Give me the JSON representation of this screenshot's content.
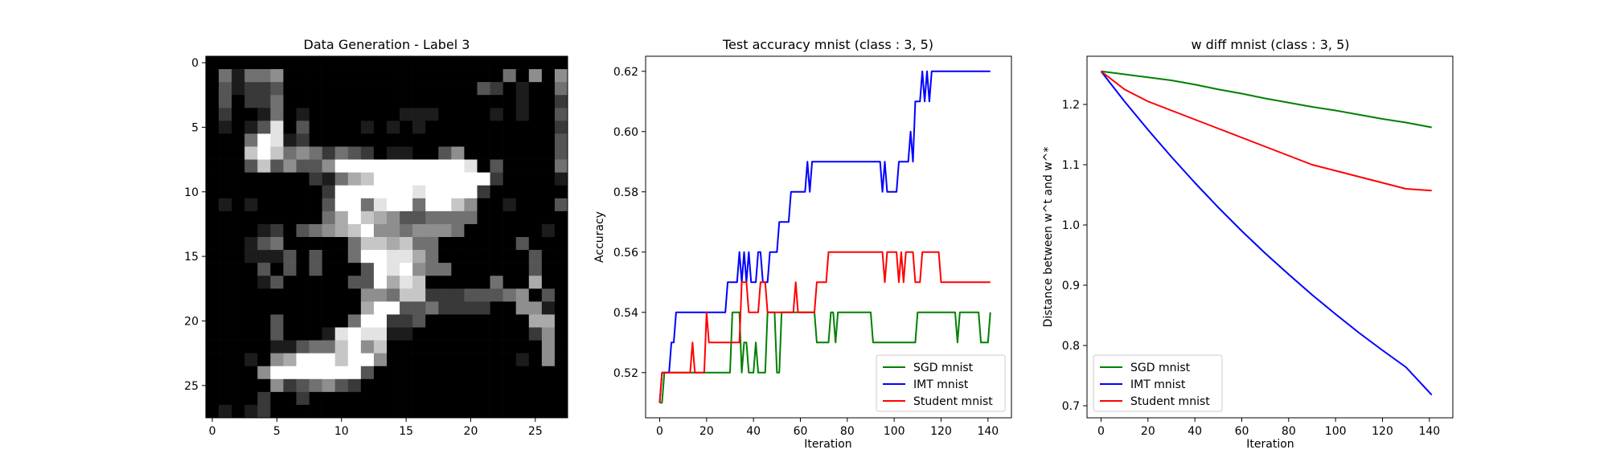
{
  "chart_data": [
    {
      "type": "heatmap",
      "title": "Data Generation - Label 3",
      "xlabel": "",
      "ylabel": "",
      "xticks": [
        0,
        5,
        10,
        15,
        20,
        25
      ],
      "yticks": [
        0,
        5,
        10,
        15,
        20,
        25
      ],
      "colormap": "gray",
      "size": [
        28,
        28
      ],
      "rows": [
        "0000000000000000000000000000",
        "0414450000000000000000040505",
        "0312230000000000000003201004",
        "0302240000000000000000001002",
        "0200140100000001110000101003",
        "0101380300001010100000000002",
        "0004981200000000000000000003",
        "0007974542432011003500000003",
        "0003735335999999999980300004",
        "0000000021467999999999200001",
        "0000000002999999899992000000",
        "0101000003994899499750010003",
        "0000000004697653344440000000",
        "0000120345679554555400000010",
        "0001340000047767440000003000",
        "0001113030049988640000000300",
        "0000303030003989544000000300",
        "0000130000033968700000400600",
        "0000000000005547722233345030",
        "0000000000006993342222005510",
        "0000030000049922300000000660",
        "0000030001898811000000000250",
        "0000011344795700000000000050",
        "0001056999799500000000001050",
        "0000599999993000000000000000",
        "0000052345320000000000000000",
        "0000200200000000000000000000",
        "0101200000000000000000000000"
      ]
    },
    {
      "type": "line",
      "title": "Test accuracy mnist (class : 3, 5)",
      "xlabel": "Iteration",
      "ylabel": "Accuracy",
      "xlim": [
        -6,
        150
      ],
      "ylim": [
        0.505,
        0.625
      ],
      "xticks": [
        0,
        20,
        40,
        60,
        80,
        100,
        120,
        140
      ],
      "yticks": [
        0.52,
        0.54,
        0.56,
        0.58,
        0.6,
        0.62
      ],
      "legend": "lower-right",
      "series": [
        {
          "name": "SGD mnist",
          "color": "#008000",
          "points": [
            [
              0,
              0.51
            ],
            [
              1,
              0.51
            ],
            [
              2,
              0.52
            ],
            [
              30,
              0.52
            ],
            [
              31,
              0.54
            ],
            [
              34,
              0.54
            ],
            [
              35,
              0.52
            ],
            [
              36,
              0.53
            ],
            [
              37,
              0.53
            ],
            [
              38,
              0.52
            ],
            [
              40,
              0.52
            ],
            [
              41,
              0.53
            ],
            [
              42,
              0.52
            ],
            [
              45,
              0.52
            ],
            [
              46,
              0.54
            ],
            [
              49,
              0.54
            ],
            [
              50,
              0.52
            ],
            [
              51,
              0.52
            ],
            [
              52,
              0.54
            ],
            [
              66,
              0.54
            ],
            [
              67,
              0.53
            ],
            [
              72,
              0.53
            ],
            [
              73,
              0.54
            ],
            [
              74,
              0.54
            ],
            [
              75,
              0.53
            ],
            [
              76,
              0.54
            ],
            [
              90,
              0.54
            ],
            [
              91,
              0.53
            ],
            [
              109,
              0.53
            ],
            [
              110,
              0.54
            ],
            [
              126,
              0.54
            ],
            [
              127,
              0.53
            ],
            [
              128,
              0.54
            ],
            [
              136,
              0.54
            ],
            [
              137,
              0.53
            ],
            [
              140,
              0.53
            ],
            [
              141,
              0.54
            ]
          ]
        },
        {
          "name": "IMT mnist",
          "color": "#0000ff",
          "points": [
            [
              0,
              0.51
            ],
            [
              1,
              0.52
            ],
            [
              4,
              0.52
            ],
            [
              5,
              0.53
            ],
            [
              6,
              0.53
            ],
            [
              7,
              0.54
            ],
            [
              28,
              0.54
            ],
            [
              29,
              0.55
            ],
            [
              33,
              0.55
            ],
            [
              34,
              0.56
            ],
            [
              35,
              0.55
            ],
            [
              36,
              0.56
            ],
            [
              37,
              0.55
            ],
            [
              38,
              0.56
            ],
            [
              39,
              0.55
            ],
            [
              41,
              0.55
            ],
            [
              42,
              0.56
            ],
            [
              43,
              0.56
            ],
            [
              44,
              0.55
            ],
            [
              46,
              0.55
            ],
            [
              47,
              0.56
            ],
            [
              50,
              0.56
            ],
            [
              51,
              0.57
            ],
            [
              55,
              0.57
            ],
            [
              56,
              0.58
            ],
            [
              62,
              0.58
            ],
            [
              63,
              0.59
            ],
            [
              64,
              0.58
            ],
            [
              65,
              0.59
            ],
            [
              94,
              0.59
            ],
            [
              95,
              0.58
            ],
            [
              96,
              0.59
            ],
            [
              97,
              0.58
            ],
            [
              101,
              0.58
            ],
            [
              102,
              0.59
            ],
            [
              106,
              0.59
            ],
            [
              107,
              0.6
            ],
            [
              108,
              0.59
            ],
            [
              109,
              0.61
            ],
            [
              110,
              0.61
            ],
            [
              111,
              0.61
            ],
            [
              112,
              0.62
            ],
            [
              113,
              0.61
            ],
            [
              114,
              0.62
            ],
            [
              115,
              0.61
            ],
            [
              116,
              0.62
            ],
            [
              141,
              0.62
            ]
          ]
        },
        {
          "name": "Student mnist",
          "color": "#ff0000",
          "points": [
            [
              0,
              0.51
            ],
            [
              1,
              0.52
            ],
            [
              13,
              0.52
            ],
            [
              14,
              0.53
            ],
            [
              15,
              0.52
            ],
            [
              19,
              0.52
            ],
            [
              20,
              0.54
            ],
            [
              21,
              0.53
            ],
            [
              34,
              0.53
            ],
            [
              35,
              0.55
            ],
            [
              37,
              0.55
            ],
            [
              38,
              0.54
            ],
            [
              42,
              0.54
            ],
            [
              43,
              0.55
            ],
            [
              45,
              0.55
            ],
            [
              46,
              0.54
            ],
            [
              57,
              0.54
            ],
            [
              58,
              0.55
            ],
            [
              59,
              0.54
            ],
            [
              66,
              0.54
            ],
            [
              67,
              0.55
            ],
            [
              71,
              0.55
            ],
            [
              72,
              0.56
            ],
            [
              95,
              0.56
            ],
            [
              96,
              0.55
            ],
            [
              97,
              0.56
            ],
            [
              101,
              0.56
            ],
            [
              102,
              0.55
            ],
            [
              103,
              0.56
            ],
            [
              104,
              0.55
            ],
            [
              105,
              0.56
            ],
            [
              108,
              0.56
            ],
            [
              109,
              0.55
            ],
            [
              111,
              0.55
            ],
            [
              112,
              0.56
            ],
            [
              119,
              0.56
            ],
            [
              120,
              0.55
            ],
            [
              141,
              0.55
            ]
          ]
        }
      ]
    },
    {
      "type": "line",
      "title": "w diff mnist (class : 3, 5)",
      "xlabel": "Iteration",
      "ylabel": "Distance between w^t and w^*",
      "xlim": [
        -6,
        150
      ],
      "ylim": [
        0.68,
        1.28
      ],
      "xticks": [
        0,
        20,
        40,
        60,
        80,
        100,
        120,
        140
      ],
      "yticks": [
        0.7,
        0.8,
        0.9,
        1.0,
        1.1,
        1.2
      ],
      "legend": "lower-left",
      "series": [
        {
          "name": "SGD mnist",
          "color": "#008000",
          "points": [
            [
              0,
              1.255
            ],
            [
              10,
              1.25
            ],
            [
              20,
              1.245
            ],
            [
              30,
              1.24
            ],
            [
              40,
              1.233
            ],
            [
              50,
              1.225
            ],
            [
              60,
              1.218
            ],
            [
              70,
              1.21
            ],
            [
              80,
              1.203
            ],
            [
              90,
              1.196
            ],
            [
              100,
              1.19
            ],
            [
              110,
              1.183
            ],
            [
              120,
              1.176
            ],
            [
              130,
              1.17
            ],
            [
              141,
              1.162
            ]
          ]
        },
        {
          "name": "IMT mnist",
          "color": "#0000ff",
          "points": [
            [
              0,
              1.255
            ],
            [
              10,
              1.205
            ],
            [
              20,
              1.158
            ],
            [
              30,
              1.113
            ],
            [
              40,
              1.07
            ],
            [
              50,
              1.029
            ],
            [
              60,
              0.99
            ],
            [
              70,
              0.953
            ],
            [
              80,
              0.918
            ],
            [
              90,
              0.884
            ],
            [
              100,
              0.852
            ],
            [
              110,
              0.821
            ],
            [
              120,
              0.792
            ],
            [
              130,
              0.764
            ],
            [
              141,
              0.718
            ]
          ]
        },
        {
          "name": "Student mnist",
          "color": "#ff0000",
          "points": [
            [
              0,
              1.255
            ],
            [
              10,
              1.225
            ],
            [
              20,
              1.205
            ],
            [
              30,
              1.19
            ],
            [
              40,
              1.175
            ],
            [
              50,
              1.16
            ],
            [
              60,
              1.145
            ],
            [
              70,
              1.13
            ],
            [
              80,
              1.115
            ],
            [
              90,
              1.1
            ],
            [
              100,
              1.09
            ],
            [
              110,
              1.08
            ],
            [
              120,
              1.07
            ],
            [
              130,
              1.06
            ],
            [
              141,
              1.057
            ]
          ]
        }
      ]
    }
  ]
}
